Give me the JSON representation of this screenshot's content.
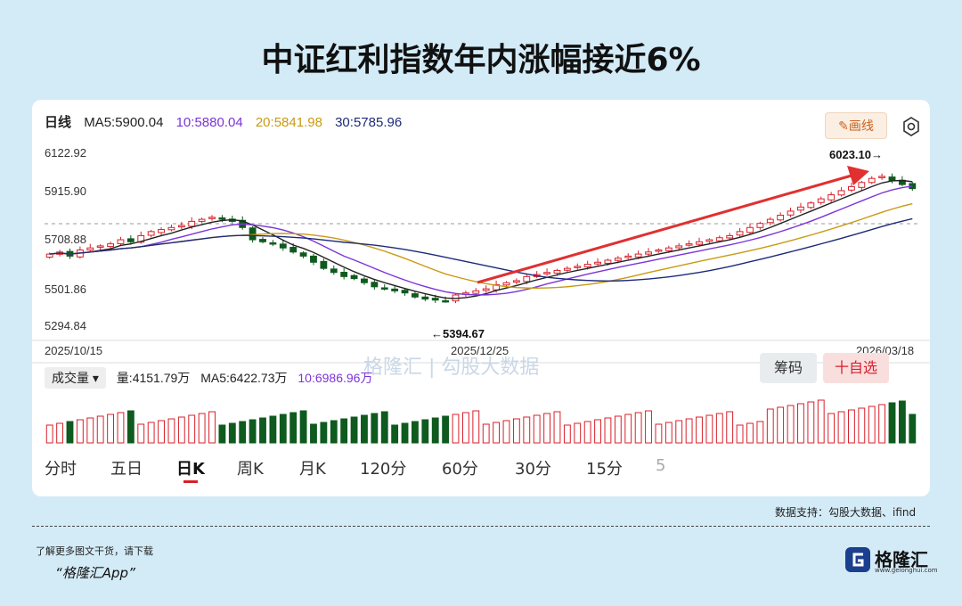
{
  "title": "中证红利指数年内涨幅接近6%",
  "indicator": {
    "label": "日线",
    "ma5": "MA5:5900.04",
    "ma10": "10:5880.04",
    "ma20": "20:5841.98",
    "ma30": "30:5785.96"
  },
  "draw_button": "画线",
  "y_labels": [
    "6122.92",
    "5915.90",
    "5708.88",
    "5501.86",
    "5294.84"
  ],
  "date_labels": [
    "2025/10/15",
    "2025/12/25",
    "2026/03/18"
  ],
  "annotations": {
    "low": "←5394.67",
    "high": "6023.10→"
  },
  "volume": {
    "select": "成交量",
    "value": "量:4151.79万",
    "ma5": "MA5:6422.73万",
    "ma10": "10:6986.96万"
  },
  "watermark": "格隆汇 | 勾股大数据",
  "tabs": [
    "分时",
    "五日",
    "日K",
    "周K",
    "月K",
    "120分",
    "60分",
    "30分",
    "15分",
    "5"
  ],
  "active_tab": "日K",
  "chips_button": "筹码",
  "fav_button": "十自选",
  "source_text": "数据支持：勾股大数据、ifind",
  "footer_line1": "了解更多图文干货，请下载",
  "footer_line2": "“格隆汇App”",
  "logo_text": "格隆汇",
  "logo_sub": "www.gelonghui.com",
  "colors": {
    "up": "#d8202a",
    "down": "#0f5a1e",
    "ma10": "#7b34d8",
    "ma20": "#c99a12",
    "ma30": "#1e2a7a",
    "arrow": "#e03030"
  },
  "chart_data": {
    "type": "candlestick",
    "ylim": [
      5294.84,
      6122.92
    ],
    "y_ticks": [
      6122.92,
      5915.9,
      5708.88,
      5501.86,
      5294.84
    ],
    "dates": [
      "2025/10/15",
      "2025/12/25",
      "2026/03/18"
    ],
    "low": 5394.67,
    "high": 6023.1,
    "close_series": [
      5630,
      5640,
      5620,
      5650,
      5660,
      5670,
      5680,
      5700,
      5690,
      5720,
      5740,
      5750,
      5760,
      5770,
      5790,
      5800,
      5810,
      5800,
      5790,
      5760,
      5700,
      5690,
      5680,
      5660,
      5640,
      5620,
      5590,
      5560,
      5540,
      5520,
      5510,
      5490,
      5470,
      5460,
      5450,
      5440,
      5420,
      5410,
      5405,
      5400,
      5430,
      5440,
      5450,
      5460,
      5480,
      5490,
      5500,
      5520,
      5530,
      5540,
      5550,
      5560,
      5570,
      5580,
      5590,
      5600,
      5610,
      5620,
      5630,
      5640,
      5650,
      5660,
      5670,
      5680,
      5690,
      5700,
      5710,
      5720,
      5740,
      5760,
      5780,
      5800,
      5820,
      5840,
      5860,
      5880,
      5900,
      5920,
      5940,
      5960,
      5980,
      6000,
      6010,
      5990,
      5970,
      5950
    ]
  }
}
